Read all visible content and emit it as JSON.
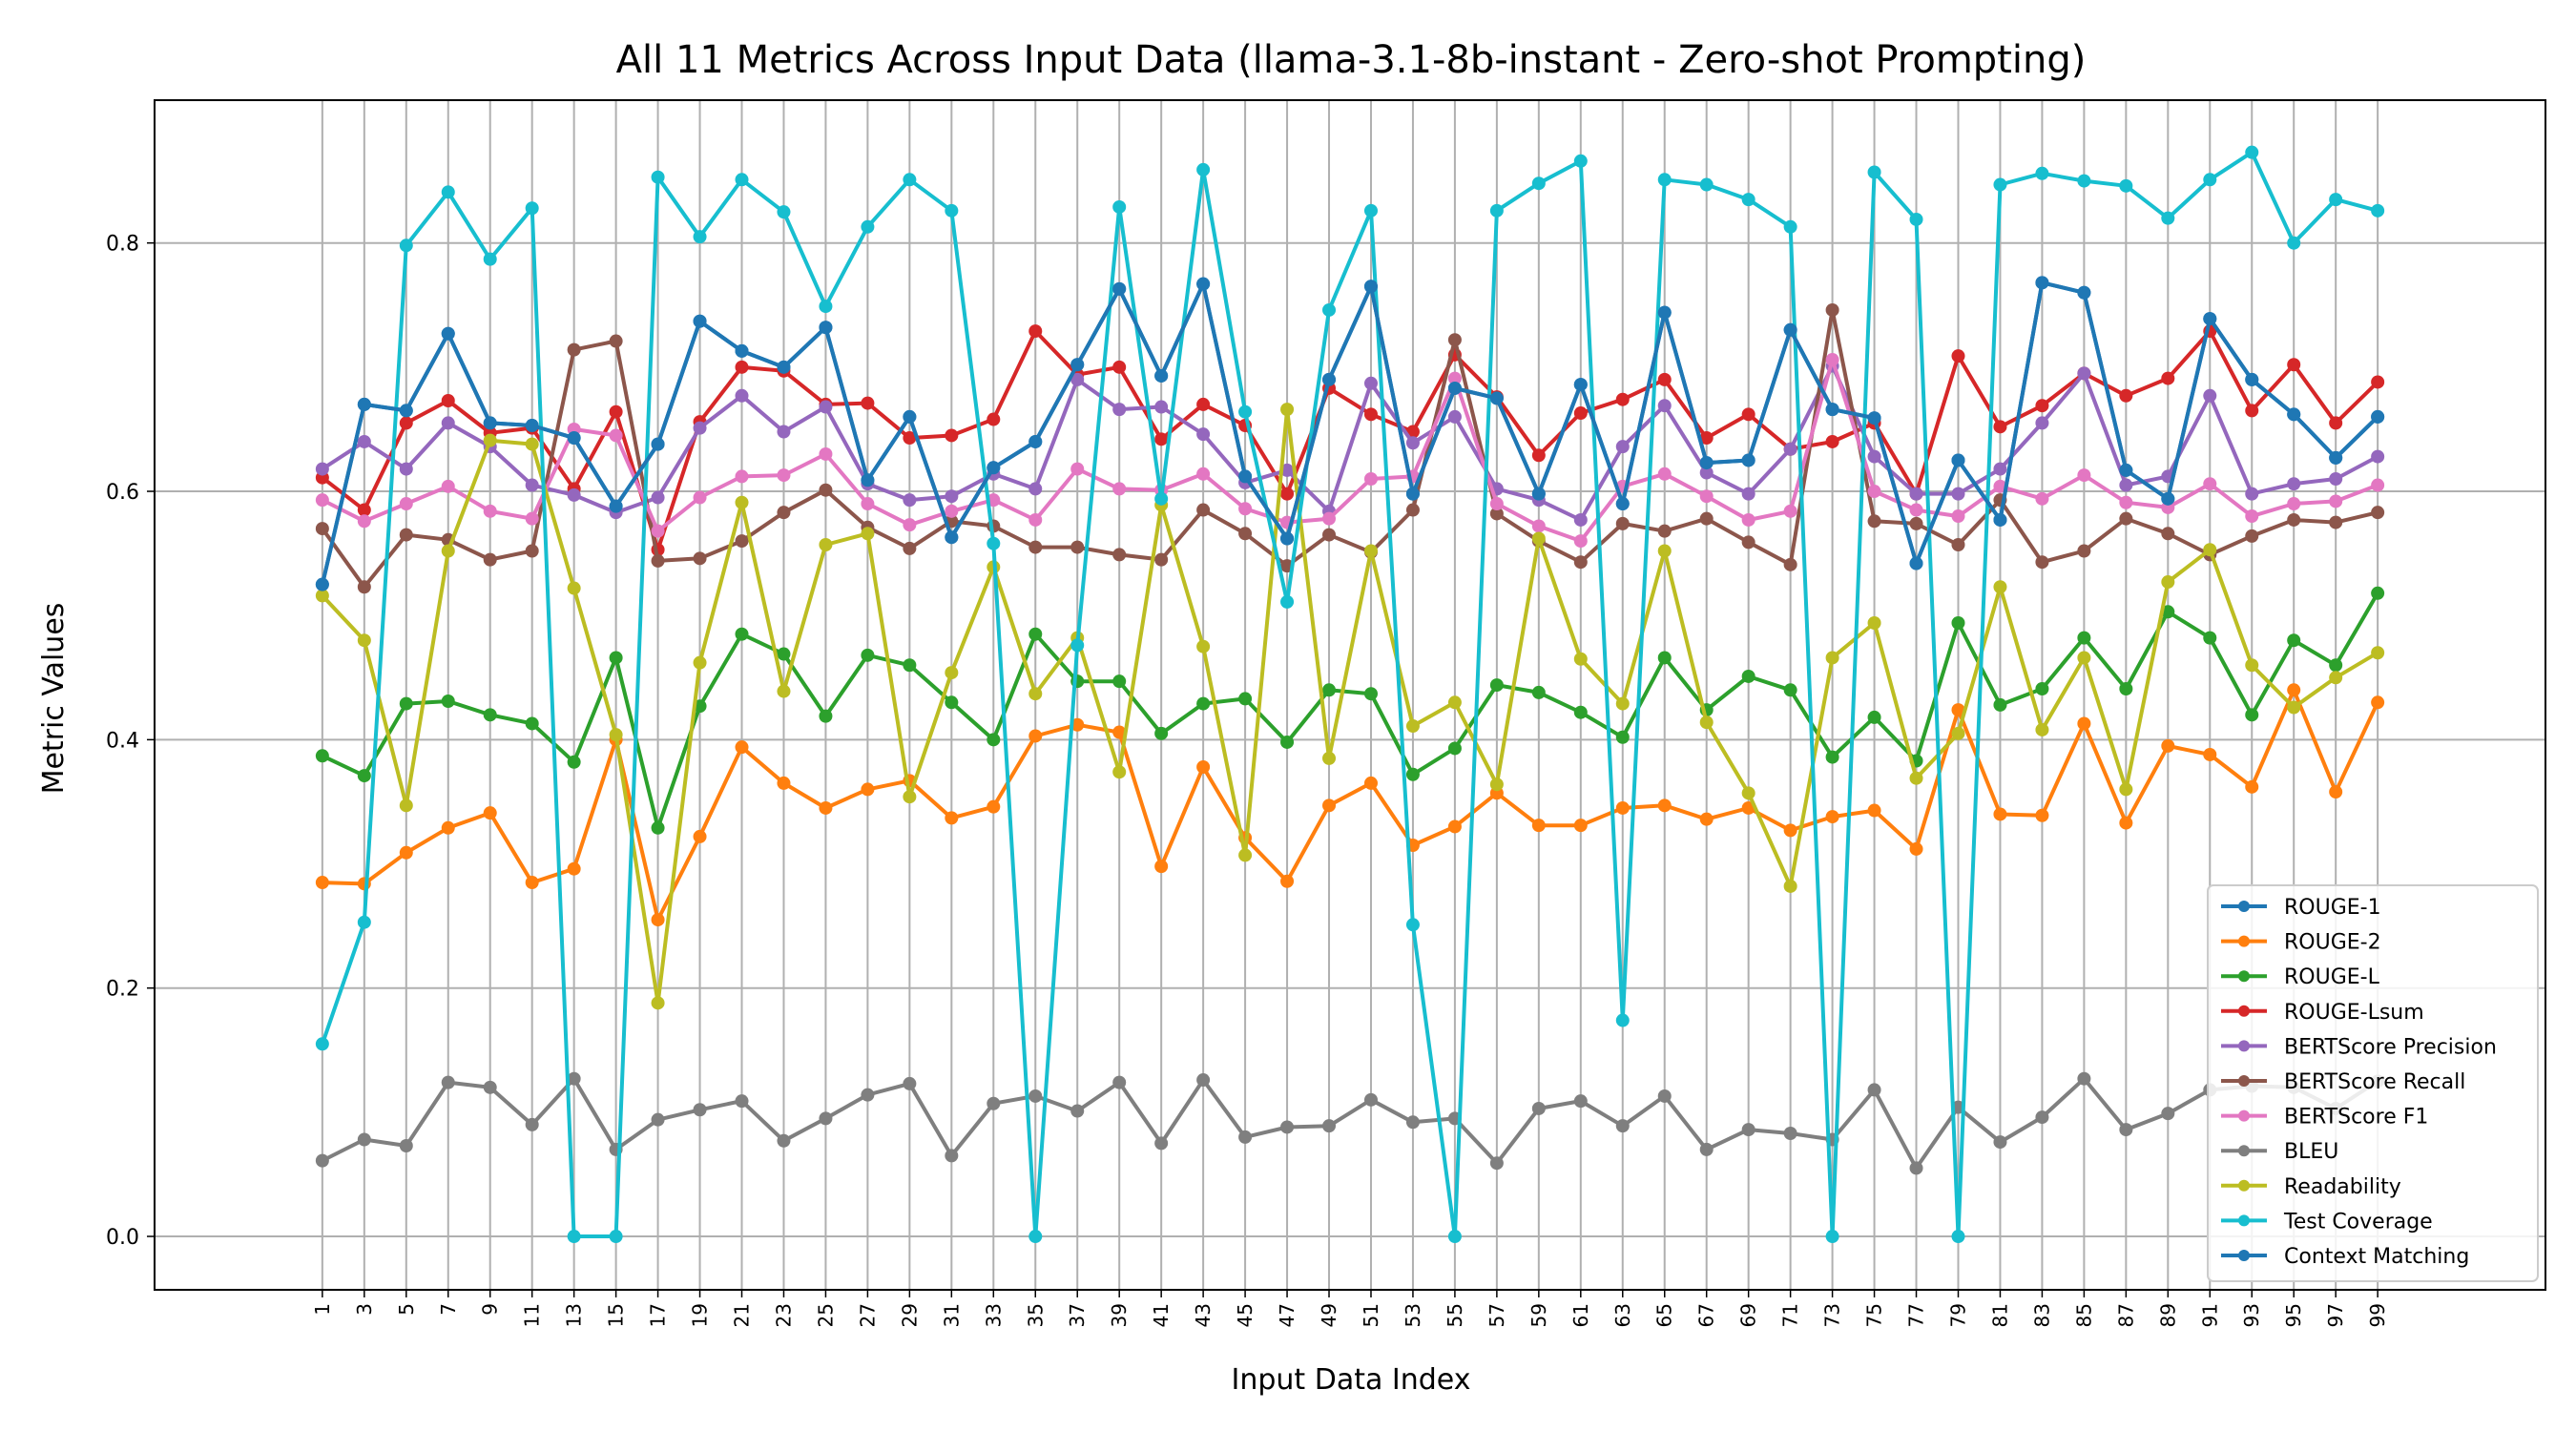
{
  "chart_data": {
    "type": "line",
    "title": "All 11 Metrics Across Input Data (llama-3.1-8b-instant - Zero-shot Prompting)",
    "xlabel": "Input Data Index",
    "ylabel": "Metric Values",
    "x": [
      1,
      3,
      5,
      7,
      9,
      11,
      13,
      15,
      17,
      19,
      21,
      23,
      25,
      27,
      29,
      31,
      33,
      35,
      37,
      39,
      41,
      43,
      45,
      47,
      49,
      51,
      53,
      55,
      57,
      59,
      61,
      63,
      65,
      67,
      69,
      71,
      73,
      75,
      77,
      79,
      81,
      83,
      85,
      87,
      89,
      91,
      93,
      95,
      97,
      99
    ],
    "xtick_labels": [
      "1",
      "3",
      "5",
      "7",
      "9",
      "11",
      "13",
      "15",
      "17",
      "19",
      "21",
      "23",
      "25",
      "27",
      "29",
      "31",
      "33",
      "35",
      "37",
      "39",
      "41",
      "43",
      "45",
      "47",
      "49",
      "51",
      "53",
      "55",
      "57",
      "59",
      "61",
      "63",
      "65",
      "67",
      "69",
      "71",
      "73",
      "75",
      "77",
      "79",
      "81",
      "83",
      "85",
      "87",
      "89",
      "91",
      "93",
      "95",
      "97",
      "99"
    ],
    "xlim": [
      -7,
      107
    ],
    "ylim": [
      -0.043,
      0.915
    ],
    "yticks": [
      0.0,
      0.2,
      0.4,
      0.6,
      0.8
    ],
    "ytick_labels": [
      "0.0",
      "0.2",
      "0.4",
      "0.6",
      "0.8"
    ],
    "grid": true,
    "legend_position": "lower-right",
    "series": [
      {
        "name": "ROUGE-1",
        "color": "#1f77b4",
        "values": [
          0.525,
          0.67,
          0.665,
          0.727,
          0.655,
          0.653,
          0.643,
          0.588,
          0.638,
          0.737,
          0.713,
          0.7,
          0.732,
          0.609,
          0.66,
          0.563,
          0.619,
          0.64,
          0.702,
          0.763,
          0.693,
          0.767,
          0.612,
          0.562,
          0.69,
          0.765,
          0.598,
          0.683,
          0.675,
          0.598,
          0.686,
          0.59,
          0.744,
          0.623,
          0.625,
          0.73,
          0.666,
          0.659,
          0.542,
          0.625,
          0.577,
          0.768,
          0.76,
          0.617,
          0.594,
          0.739,
          0.69,
          0.662,
          0.627,
          0.66
        ]
      },
      {
        "name": "ROUGE-2",
        "color": "#ff7f0e",
        "values": [
          0.285,
          0.284,
          0.309,
          0.329,
          0.341,
          0.285,
          0.296,
          0.4,
          0.255,
          0.322,
          0.394,
          0.365,
          0.345,
          0.36,
          0.367,
          0.337,
          0.346,
          0.403,
          0.412,
          0.406,
          0.298,
          0.378,
          0.321,
          0.286,
          0.347,
          0.365,
          0.315,
          0.33,
          0.357,
          0.331,
          0.331,
          0.345,
          0.347,
          0.336,
          0.345,
          0.327,
          0.338,
          0.343,
          0.312,
          0.424,
          0.34,
          0.339,
          0.413,
          0.333,
          0.395,
          0.388,
          0.362,
          0.44,
          0.358,
          0.43
        ]
      },
      {
        "name": "ROUGE-L",
        "color": "#2ca02c",
        "values": [
          0.387,
          0.371,
          0.429,
          0.431,
          0.42,
          0.413,
          0.382,
          0.466,
          0.329,
          0.427,
          0.485,
          0.469,
          0.419,
          0.468,
          0.46,
          0.43,
          0.4,
          0.485,
          0.447,
          0.447,
          0.405,
          0.429,
          0.433,
          0.398,
          0.44,
          0.437,
          0.372,
          0.393,
          0.444,
          0.438,
          0.422,
          0.402,
          0.466,
          0.424,
          0.451,
          0.44,
          0.386,
          0.418,
          0.383,
          0.494,
          0.428,
          0.441,
          0.482,
          0.441,
          0.503,
          0.482,
          0.42,
          0.48,
          0.46,
          0.518
        ]
      },
      {
        "name": "ROUGE-Lsum",
        "color": "#d62728",
        "values": [
          0.611,
          0.585,
          0.655,
          0.673,
          0.647,
          0.651,
          0.602,
          0.664,
          0.553,
          0.656,
          0.7,
          0.697,
          0.67,
          0.671,
          0.643,
          0.645,
          0.658,
          0.729,
          0.694,
          0.7,
          0.642,
          0.67,
          0.653,
          0.598,
          0.683,
          0.662,
          0.648,
          0.71,
          0.676,
          0.629,
          0.663,
          0.674,
          0.69,
          0.643,
          0.662,
          0.634,
          0.64,
          0.655,
          0.598,
          0.709,
          0.652,
          0.669,
          0.695,
          0.677,
          0.691,
          0.729,
          0.665,
          0.702,
          0.655,
          0.688
        ]
      },
      {
        "name": "BERTScore Precision",
        "color": "#9467bd",
        "values": [
          0.618,
          0.64,
          0.618,
          0.655,
          0.636,
          0.605,
          0.597,
          0.583,
          0.595,
          0.651,
          0.677,
          0.648,
          0.668,
          0.606,
          0.593,
          0.596,
          0.614,
          0.602,
          0.69,
          0.666,
          0.668,
          0.646,
          0.607,
          0.617,
          0.584,
          0.687,
          0.639,
          0.66,
          0.602,
          0.593,
          0.577,
          0.636,
          0.669,
          0.615,
          0.598,
          0.634,
          0.701,
          0.628,
          0.598,
          0.598,
          0.618,
          0.655,
          0.695,
          0.605,
          0.612,
          0.677,
          0.598,
          0.606,
          0.61,
          0.628
        ]
      },
      {
        "name": "BERTScore Recall",
        "color": "#8c564b",
        "values": [
          0.57,
          0.523,
          0.565,
          0.561,
          0.545,
          0.552,
          0.714,
          0.721,
          0.544,
          0.546,
          0.56,
          0.583,
          0.601,
          0.571,
          0.554,
          0.576,
          0.572,
          0.555,
          0.555,
          0.549,
          0.545,
          0.585,
          0.566,
          0.54,
          0.565,
          0.551,
          0.585,
          0.722,
          0.582,
          0.56,
          0.543,
          0.574,
          0.568,
          0.578,
          0.559,
          0.541,
          0.746,
          0.576,
          0.574,
          0.557,
          0.593,
          0.543,
          0.552,
          0.578,
          0.566,
          0.549,
          0.564,
          0.577,
          0.575,
          0.583
        ]
      },
      {
        "name": "BERTScore F1",
        "color": "#e377c2",
        "values": [
          0.593,
          0.576,
          0.59,
          0.604,
          0.584,
          0.578,
          0.65,
          0.645,
          0.568,
          0.595,
          0.612,
          0.613,
          0.63,
          0.59,
          0.573,
          0.584,
          0.593,
          0.577,
          0.618,
          0.602,
          0.601,
          0.614,
          0.586,
          0.575,
          0.578,
          0.61,
          0.612,
          0.691,
          0.59,
          0.572,
          0.56,
          0.604,
          0.614,
          0.596,
          0.577,
          0.584,
          0.706,
          0.6,
          0.585,
          0.58,
          0.604,
          0.594,
          0.613,
          0.591,
          0.587,
          0.606,
          0.58,
          0.59,
          0.592,
          0.605
        ]
      },
      {
        "name": "BLEU",
        "color": "#7f7f7f",
        "values": [
          0.061,
          0.078,
          0.073,
          0.124,
          0.12,
          0.09,
          0.127,
          0.07,
          0.094,
          0.102,
          0.109,
          0.077,
          0.095,
          0.114,
          0.123,
          0.065,
          0.107,
          0.113,
          0.101,
          0.124,
          0.075,
          0.126,
          0.08,
          0.088,
          0.089,
          0.11,
          0.092,
          0.095,
          0.059,
          0.103,
          0.109,
          0.089,
          0.113,
          0.07,
          0.086,
          0.083,
          0.078,
          0.118,
          0.055,
          0.104,
          0.076,
          0.096,
          0.127,
          0.086,
          0.099,
          0.118,
          0.121,
          0.12,
          0.103,
          0.125
        ]
      },
      {
        "name": "Readability",
        "color": "#bcbd22",
        "values": [
          0.516,
          0.48,
          0.347,
          0.552,
          0.641,
          0.638,
          0.522,
          0.404,
          0.188,
          0.462,
          0.591,
          0.439,
          0.557,
          0.566,
          0.354,
          0.454,
          0.539,
          0.437,
          0.482,
          0.374,
          0.589,
          0.475,
          0.307,
          0.666,
          0.385,
          0.552,
          0.411,
          0.43,
          0.364,
          0.562,
          0.465,
          0.429,
          0.552,
          0.414,
          0.357,
          0.282,
          0.466,
          0.494,
          0.369,
          0.405,
          0.523,
          0.408,
          0.466,
          0.36,
          0.527,
          0.553,
          0.46,
          0.426,
          0.45,
          0.47
        ]
      },
      {
        "name": "Test Coverage",
        "color": "#17becf",
        "values": [
          0.155,
          0.253,
          0.798,
          0.841,
          0.787,
          0.828,
          0.0,
          0.0,
          0.853,
          0.805,
          0.851,
          0.825,
          0.749,
          0.813,
          0.851,
          0.826,
          0.558,
          0.0,
          0.476,
          0.829,
          0.594,
          0.859,
          0.664,
          0.511,
          0.746,
          0.826,
          0.251,
          0.0,
          0.826,
          0.848,
          0.866,
          0.174,
          0.851,
          0.847,
          0.835,
          0.813,
          0.0,
          0.857,
          0.819,
          0.0,
          0.847,
          0.856,
          0.85,
          0.846,
          0.82,
          0.851,
          0.873,
          0.8,
          0.835,
          0.826
        ]
      },
      {
        "name": "Context Matching",
        "color": "#1f77b4",
        "values": [
          0.525,
          0.67,
          0.665,
          0.727,
          0.655,
          0.653,
          0.643,
          0.588,
          0.638,
          0.737,
          0.713,
          0.7,
          0.732,
          0.609,
          0.66,
          0.563,
          0.619,
          0.64,
          0.702,
          0.763,
          0.693,
          0.767,
          0.612,
          0.562,
          0.69,
          0.765,
          0.598,
          0.683,
          0.675,
          0.598,
          0.686,
          0.59,
          0.744,
          0.623,
          0.625,
          0.73,
          0.666,
          0.659,
          0.542,
          0.625,
          0.577,
          0.768,
          0.76,
          0.617,
          0.594,
          0.739,
          0.69,
          0.662,
          0.627,
          0.66
        ]
      }
    ]
  }
}
